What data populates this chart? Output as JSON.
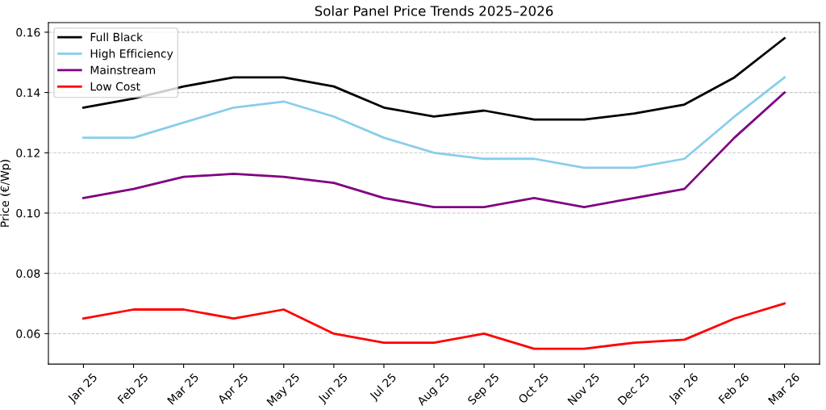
{
  "chart_data": {
    "type": "line",
    "title": "Solar Panel Price Trends 2025–2026",
    "ylabel": "Price (€/Wp)",
    "categories": [
      "Jan 25",
      "Feb 25",
      "Mar 25",
      "Apr 25",
      "May 25",
      "Jun 25",
      "Jul 25",
      "Aug 25",
      "Sep 25",
      "Oct 25",
      "Nov 25",
      "Dec 25",
      "Jan 26",
      "Feb 26",
      "Mar 26"
    ],
    "series": [
      {
        "name": "Full Black",
        "color": "#000000",
        "values": [
          0.135,
          0.138,
          0.142,
          0.145,
          0.145,
          0.142,
          0.135,
          0.132,
          0.134,
          0.131,
          0.131,
          0.133,
          0.136,
          0.145,
          0.158
        ]
      },
      {
        "name": "High Efficiency",
        "color": "#87ceeb",
        "values": [
          0.125,
          0.125,
          0.13,
          0.135,
          0.137,
          0.132,
          0.125,
          0.12,
          0.118,
          0.118,
          0.115,
          0.115,
          0.118,
          0.132,
          0.145
        ]
      },
      {
        "name": "Mainstream",
        "color": "#800080",
        "values": [
          0.105,
          0.108,
          0.112,
          0.113,
          0.112,
          0.11,
          0.105,
          0.102,
          0.102,
          0.105,
          0.102,
          0.105,
          0.108,
          0.125,
          0.14
        ]
      },
      {
        "name": "Low Cost",
        "color": "#ff0000",
        "values": [
          0.065,
          0.068,
          0.068,
          0.065,
          0.068,
          0.06,
          0.057,
          0.057,
          0.06,
          0.055,
          0.055,
          0.057,
          0.058,
          0.065,
          0.07
        ]
      }
    ],
    "ylim": [
      0.0499,
      0.1632
    ],
    "yticks": [
      0.06,
      0.08,
      {
        "value": 0.1,
        "label": "0.10"
      },
      0.12,
      0.14,
      0.16
    ],
    "grid": "y",
    "legend": "top left",
    "marker": "none",
    "line_style": "solid"
  }
}
